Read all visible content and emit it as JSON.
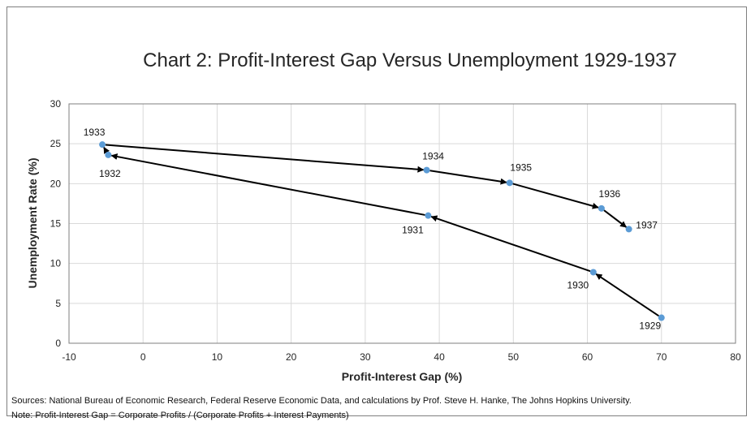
{
  "chart_data": {
    "type": "scatter",
    "title": "Chart 2: Profit-Interest Gap Versus Unemployment 1929-1937",
    "xlabel": "Profit-Interest Gap (%)",
    "ylabel": "Unemployment Rate (%)",
    "xlim": [
      -10,
      80
    ],
    "ylim": [
      0,
      30
    ],
    "x_ticks": [
      -10,
      0,
      10,
      20,
      30,
      40,
      50,
      60,
      70,
      80
    ],
    "y_ticks": [
      0,
      5,
      10,
      15,
      20,
      25,
      30
    ],
    "grid": true,
    "legend": "none",
    "series": [
      {
        "connected_with_arrows": true,
        "points": [
          {
            "label": "1929",
            "x": 70.0,
            "y": 3.2
          },
          {
            "label": "1930",
            "x": 60.8,
            "y": 8.9
          },
          {
            "label": "1931",
            "x": 38.5,
            "y": 16.0
          },
          {
            "label": "1932",
            "x": -4.7,
            "y": 23.6
          },
          {
            "label": "1933",
            "x": -5.5,
            "y": 24.9
          },
          {
            "label": "1934",
            "x": 38.3,
            "y": 21.7
          },
          {
            "label": "1935",
            "x": 49.5,
            "y": 20.1
          },
          {
            "label": "1936",
            "x": 61.9,
            "y": 16.9
          },
          {
            "label": "1937",
            "x": 65.6,
            "y": 14.3
          }
        ]
      }
    ]
  },
  "colors": {
    "point": "#5b9bd5",
    "line": "#000000",
    "grid": "#d9d9d9",
    "border": "#7f7f7f"
  },
  "footnotes": {
    "sources": "Sources: National Bureau of Economic Research, Federal Reserve Economic Data, and calculations by Prof. Steve H. Hanke, The Johns Hopkins University.",
    "note": "Note: Profit-Interest Gap = Corporate Profits / (Corporate Profits + Interest Payments)"
  }
}
